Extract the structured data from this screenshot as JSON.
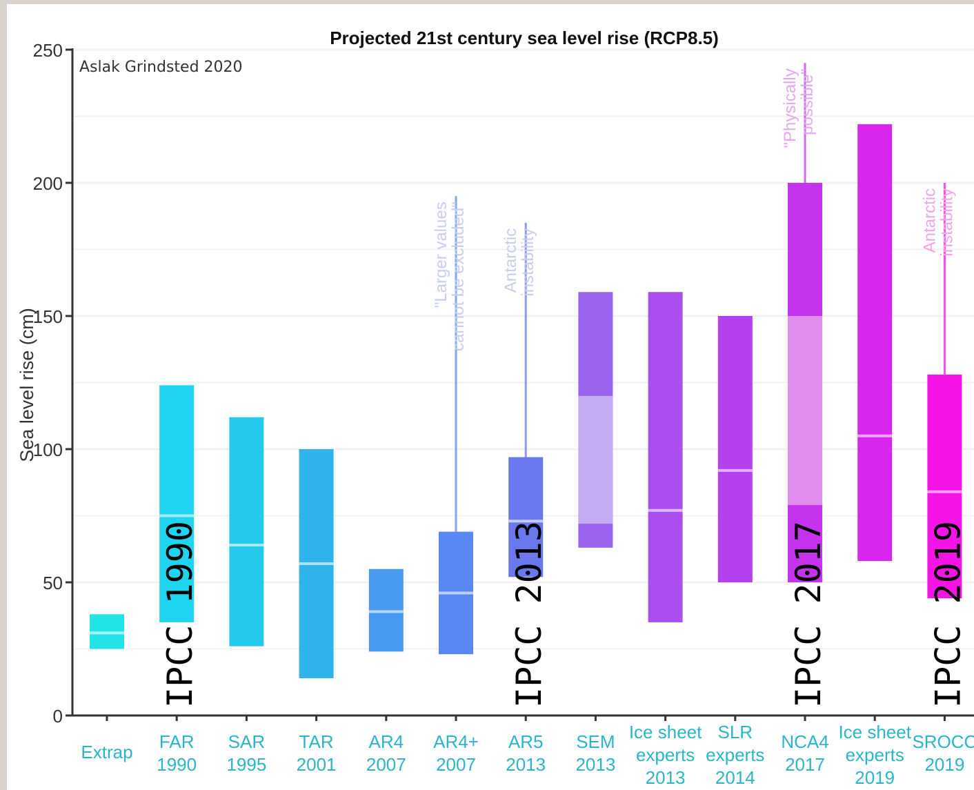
{
  "chart_data": {
    "type": "bar",
    "title": "Projected 21st century sea level rise  (RCP8.5)",
    "credit": "Aslak Grindsted 2020",
    "ylabel": "Sea level rise (cm)",
    "xlabel": "",
    "ylim": [
      0,
      250
    ],
    "yticks": [
      "0",
      "50",
      "100",
      "150",
      "200",
      "250"
    ],
    "grid": true,
    "bars": [
      {
        "label": [
          "Extrap"
        ],
        "low": 25,
        "high": 38,
        "median": 31,
        "color": "#22e4e8"
      },
      {
        "label": [
          "FAR",
          "1990"
        ],
        "low": 35,
        "high": 124,
        "median": 75,
        "color": "#1ed4ee"
      },
      {
        "label": [
          "SAR",
          "1995"
        ],
        "low": 26,
        "high": 112,
        "median": 64,
        "color": "#25c9ea"
      },
      {
        "label": [
          "TAR",
          "2001"
        ],
        "low": 14,
        "high": 100,
        "median": 57,
        "color": "#2fb3ec"
      },
      {
        "label": [
          "AR4",
          "2007"
        ],
        "low": 24,
        "high": 55,
        "median": 39,
        "color": "#4899f0"
      },
      {
        "label": [
          "AR4+",
          "2007"
        ],
        "low": 23,
        "high": 69,
        "median": 46,
        "color": "#5a88f2",
        "whisker": 195
      },
      {
        "label": [
          "AR5",
          "2013"
        ],
        "low": 52,
        "high": 97,
        "median": 73,
        "color": "#6a78ee",
        "whisker": 185
      },
      {
        "label": [
          "SEM",
          "2013"
        ],
        "low": 63,
        "high": 159,
        "median": null,
        "color": "#9a63ee",
        "inner": {
          "low": 72,
          "high": 120,
          "color": "#c4abf2"
        }
      },
      {
        "label": [
          "Ice sheet",
          "experts",
          "2013"
        ],
        "low": 35,
        "high": 159,
        "median": 77,
        "color": "#aa4ef0"
      },
      {
        "label": [
          "SLR",
          "experts",
          "2014"
        ],
        "low": 50,
        "high": 150,
        "median": 92,
        "color": "#b540f0"
      },
      {
        "label": [
          "NCA4",
          "2017"
        ],
        "low": 50,
        "high": 200,
        "median": null,
        "color": "#c533ee",
        "inner": {
          "low": 79,
          "high": 150,
          "color": "#e18cef"
        },
        "whisker": 245
      },
      {
        "label": [
          "Ice sheet",
          "experts",
          "2019"
        ],
        "low": 58,
        "high": 222,
        "median": 105,
        "color": "#d826ee"
      },
      {
        "label": [
          "SROCC",
          "2019"
        ],
        "low": 44,
        "high": 128,
        "median": 84,
        "color": "#f414e6",
        "whisker": 200
      }
    ],
    "annotations": [
      {
        "text": [
          "\"Larger values",
          "cannot be excluded\""
        ],
        "bar": 5,
        "color": "#c8cef0"
      },
      {
        "text": [
          "Antarctic",
          "instability"
        ],
        "bar": 6,
        "color": "#c8cef0"
      },
      {
        "text": [
          "\"Physically",
          "possible\""
        ],
        "bar": 10,
        "color": "#e3a8ef"
      },
      {
        "text": [
          "Antarctic",
          "instability"
        ],
        "bar": 12,
        "color": "#f0a5ec"
      }
    ],
    "overlay_labels": [
      {
        "text": "IPCC 1990",
        "bar": 1
      },
      {
        "text": "IPCC 2013",
        "bar": 6
      },
      {
        "text": "IPCC 2017",
        "bar": 10
      },
      {
        "text": "IPCC 2019",
        "bar": 12
      }
    ],
    "colors": {
      "axis": "#333333",
      "xlabel": "#2bb5c8",
      "grid": "#f1f1f1"
    }
  }
}
